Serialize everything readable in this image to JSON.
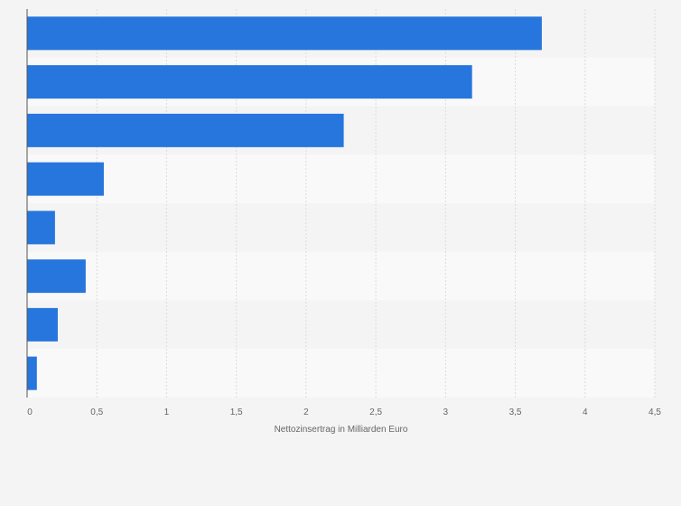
{
  "chart_data": {
    "type": "bar",
    "orientation": "horizontal",
    "title": "",
    "xlabel": "Nettozinsertrag in Milliarden Euro",
    "ylabel": "",
    "xlim": [
      0,
      4.5
    ],
    "x_ticks": [
      0,
      0.5,
      1,
      1.5,
      2,
      2.5,
      3,
      3.5,
      4,
      4.5
    ],
    "x_tick_labels": [
      "0",
      "0,5",
      "1",
      "1,5",
      "2",
      "2,5",
      "3",
      "3,5",
      "4",
      "4,5"
    ],
    "grid": "vertical",
    "categories": [
      "",
      "",
      "",
      "",
      "",
      "",
      "",
      ""
    ],
    "values": [
      3.69,
      3.19,
      2.27,
      0.55,
      0.2,
      0.42,
      0.22,
      0.07
    ]
  },
  "colors": {
    "bar": "#2776dd",
    "band_dark": "#f4f4f4",
    "band_light": "#f9f9f9",
    "grid": "#dcdcdc",
    "axis": "#555555",
    "text": "#666666"
  }
}
